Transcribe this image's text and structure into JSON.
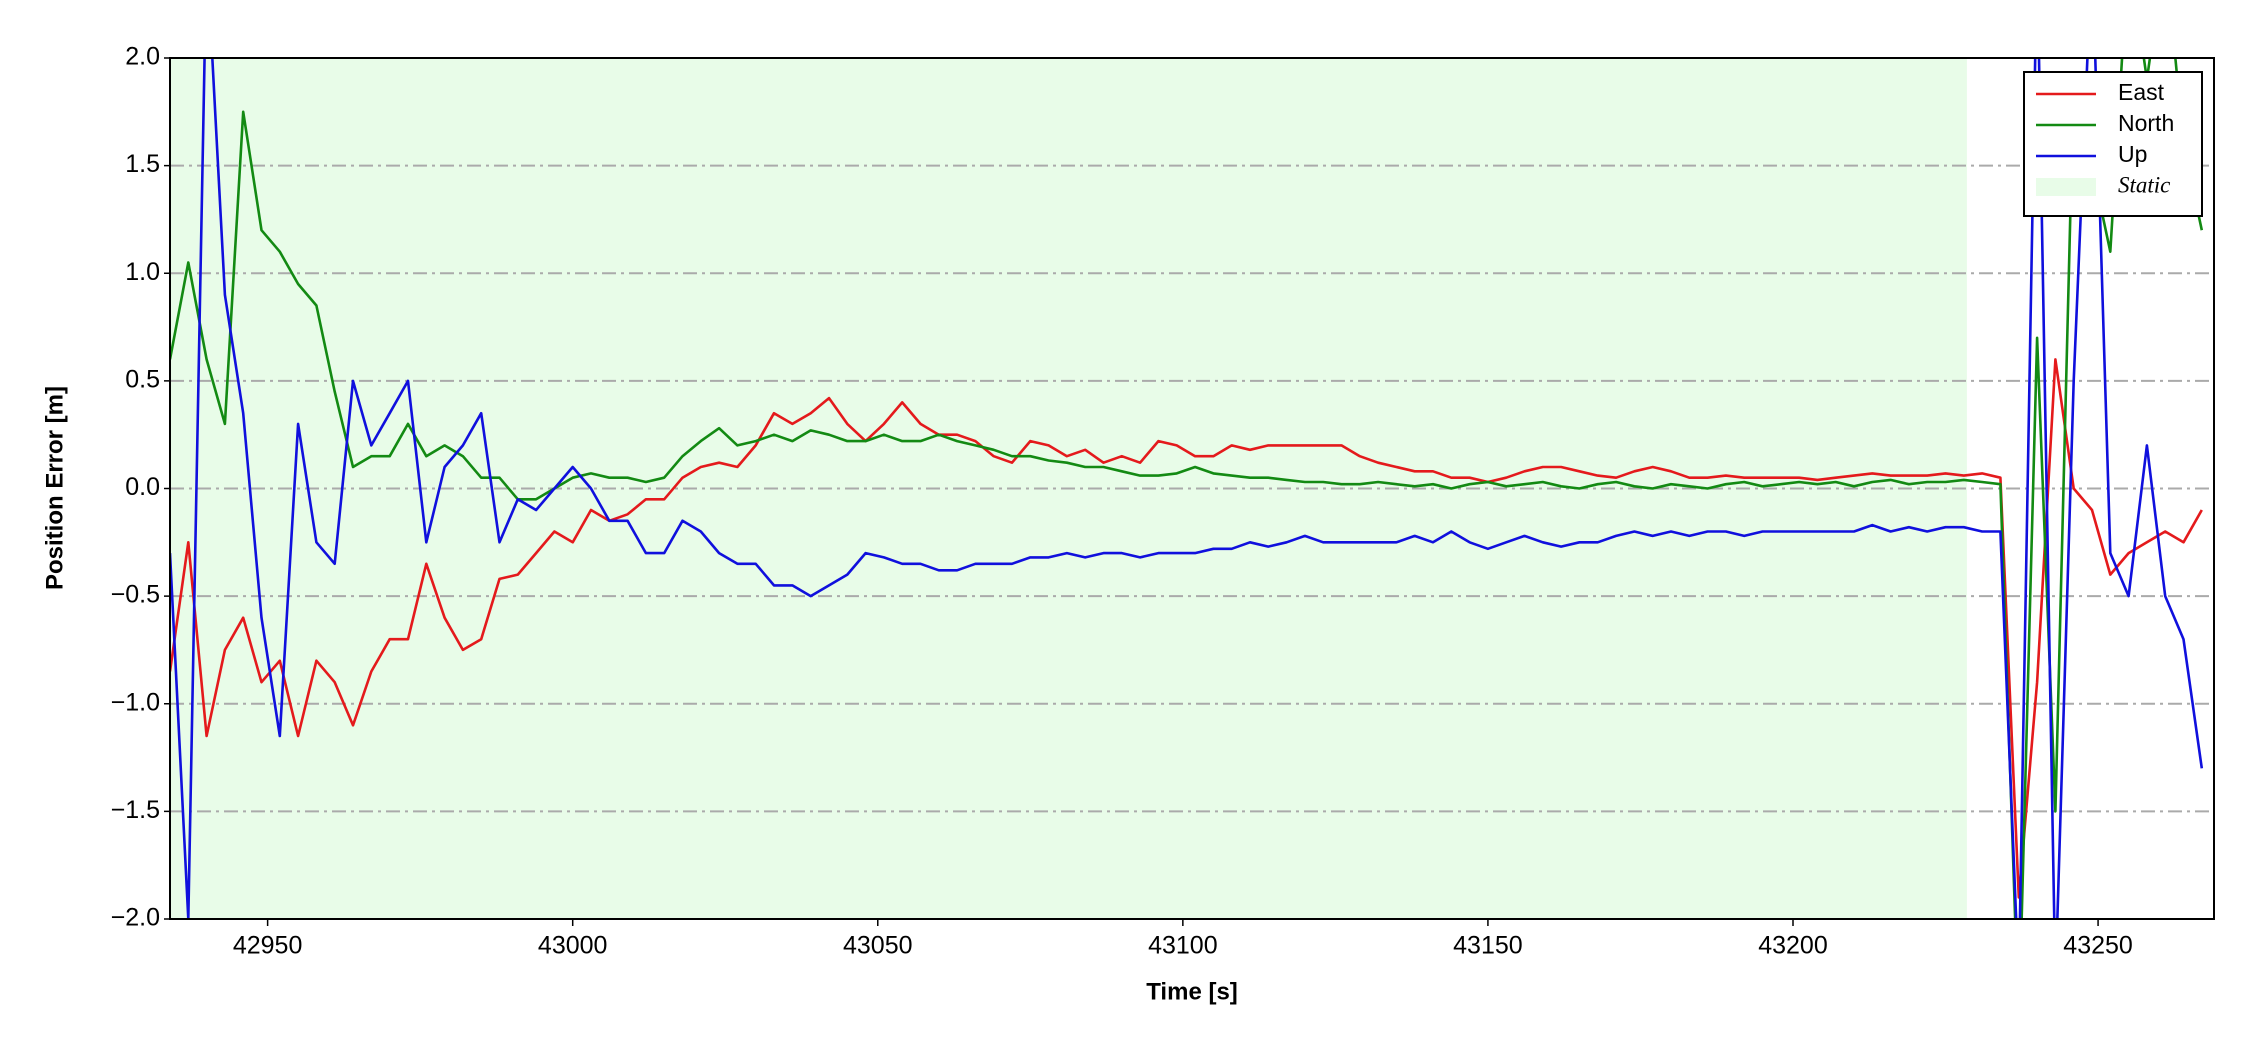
{
  "chart_data": {
    "type": "line",
    "xlabel": "Time [s]",
    "ylabel": "Position Error [m]",
    "x": [
      42934,
      42937,
      42940,
      42943,
      42946,
      42949,
      42952,
      42955,
      42958,
      42961,
      42964,
      42967,
      42970,
      42973,
      42976,
      42979,
      42982,
      42985,
      42988,
      42991,
      42994,
      42997,
      43000,
      43003,
      43006,
      43009,
      43012,
      43015,
      43018,
      43021,
      43024,
      43027,
      43030,
      43033,
      43036,
      43039,
      43042,
      43045,
      43048,
      43051,
      43054,
      43057,
      43060,
      43063,
      43066,
      43069,
      43072,
      43075,
      43078,
      43081,
      43084,
      43087,
      43090,
      43093,
      43096,
      43099,
      43102,
      43105,
      43108,
      43111,
      43114,
      43117,
      43120,
      43123,
      43126,
      43129,
      43132,
      43135,
      43138,
      43141,
      43144,
      43147,
      43150,
      43153,
      43156,
      43159,
      43162,
      43165,
      43168,
      43171,
      43174,
      43177,
      43180,
      43183,
      43186,
      43189,
      43192,
      43195,
      43198,
      43201,
      43204,
      43207,
      43210,
      43213,
      43216,
      43219,
      43222,
      43225,
      43228,
      43231,
      43234,
      43237,
      43240,
      43243,
      43246,
      43249,
      43252,
      43255,
      43258,
      43261,
      43264,
      43267
    ],
    "series": [
      {
        "name": "East",
        "color": "#e41a1c",
        "values": [
          -0.85,
          -0.25,
          -1.15,
          -0.75,
          -0.6,
          -0.9,
          -0.8,
          -1.15,
          -0.8,
          -0.9,
          -1.1,
          -0.85,
          -0.7,
          -0.7,
          -0.35,
          -0.6,
          -0.75,
          -0.7,
          -0.42,
          -0.4,
          -0.3,
          -0.2,
          -0.25,
          -0.1,
          -0.15,
          -0.12,
          -0.05,
          -0.05,
          0.05,
          0.1,
          0.12,
          0.1,
          0.2,
          0.35,
          0.3,
          0.35,
          0.42,
          0.3,
          0.22,
          0.3,
          0.4,
          0.3,
          0.25,
          0.25,
          0.22,
          0.15,
          0.12,
          0.22,
          0.2,
          0.15,
          0.18,
          0.12,
          0.15,
          0.12,
          0.22,
          0.2,
          0.15,
          0.15,
          0.2,
          0.18,
          0.2,
          0.2,
          0.2,
          0.2,
          0.2,
          0.15,
          0.12,
          0.1,
          0.08,
          0.08,
          0.05,
          0.05,
          0.03,
          0.05,
          0.08,
          0.1,
          0.1,
          0.08,
          0.06,
          0.05,
          0.08,
          0.1,
          0.08,
          0.05,
          0.05,
          0.06,
          0.05,
          0.05,
          0.05,
          0.05,
          0.04,
          0.05,
          0.06,
          0.07,
          0.06,
          0.06,
          0.06,
          0.07,
          0.06,
          0.07,
          0.05,
          -1.9,
          -0.9,
          0.6,
          0.0,
          -0.1,
          -0.4,
          -0.3,
          -0.25,
          -0.2,
          -0.25,
          -0.1
        ]
      },
      {
        "name": "North",
        "color": "#138a13",
        "values": [
          0.6,
          1.05,
          0.6,
          0.3,
          1.75,
          1.2,
          1.1,
          0.95,
          0.85,
          0.45,
          0.1,
          0.15,
          0.15,
          0.3,
          0.15,
          0.2,
          0.15,
          0.05,
          0.05,
          -0.05,
          -0.05,
          0.0,
          0.05,
          0.07,
          0.05,
          0.05,
          0.03,
          0.05,
          0.15,
          0.22,
          0.28,
          0.2,
          0.22,
          0.25,
          0.22,
          0.27,
          0.25,
          0.22,
          0.22,
          0.25,
          0.22,
          0.22,
          0.25,
          0.22,
          0.2,
          0.18,
          0.15,
          0.15,
          0.13,
          0.12,
          0.1,
          0.1,
          0.08,
          0.06,
          0.06,
          0.07,
          0.1,
          0.07,
          0.06,
          0.05,
          0.05,
          0.04,
          0.03,
          0.03,
          0.02,
          0.02,
          0.03,
          0.02,
          0.01,
          0.02,
          0.0,
          0.02,
          0.03,
          0.01,
          0.02,
          0.03,
          0.01,
          0.0,
          0.02,
          0.03,
          0.01,
          0.0,
          0.02,
          0.01,
          0.0,
          0.02,
          0.03,
          0.01,
          0.02,
          0.03,
          0.02,
          0.03,
          0.01,
          0.03,
          0.04,
          0.02,
          0.03,
          0.03,
          0.04,
          0.03,
          0.02,
          -2.5,
          0.7,
          -1.5,
          1.9,
          1.5,
          1.1,
          2.5,
          1.9,
          2.5,
          1.6,
          1.2
        ]
      },
      {
        "name": "Up",
        "color": "#1010dd",
        "values": [
          -0.3,
          -2.0,
          2.5,
          0.9,
          0.35,
          -0.6,
          -1.15,
          0.3,
          -0.25,
          -0.35,
          0.5,
          0.2,
          0.35,
          0.5,
          -0.25,
          0.1,
          0.2,
          0.35,
          -0.25,
          -0.05,
          -0.1,
          0.0,
          0.1,
          0.0,
          -0.15,
          -0.15,
          -0.3,
          -0.3,
          -0.15,
          -0.2,
          -0.3,
          -0.35,
          -0.35,
          -0.45,
          -0.45,
          -0.5,
          -0.45,
          -0.4,
          -0.3,
          -0.32,
          -0.35,
          -0.35,
          -0.38,
          -0.38,
          -0.35,
          -0.35,
          -0.35,
          -0.32,
          -0.32,
          -0.3,
          -0.32,
          -0.3,
          -0.3,
          -0.32,
          -0.3,
          -0.3,
          -0.3,
          -0.28,
          -0.28,
          -0.25,
          -0.27,
          -0.25,
          -0.22,
          -0.25,
          -0.25,
          -0.25,
          -0.25,
          -0.25,
          -0.22,
          -0.25,
          -0.2,
          -0.25,
          -0.28,
          -0.25,
          -0.22,
          -0.25,
          -0.27,
          -0.25,
          -0.25,
          -0.22,
          -0.2,
          -0.22,
          -0.2,
          -0.22,
          -0.2,
          -0.2,
          -0.22,
          -0.2,
          -0.2,
          -0.2,
          -0.2,
          -0.2,
          -0.2,
          -0.17,
          -0.2,
          -0.18,
          -0.2,
          -0.18,
          -0.18,
          -0.2,
          -0.2,
          -2.3,
          2.5,
          -2.3,
          0.5,
          2.5,
          -0.3,
          -0.5,
          0.2,
          -0.5,
          -0.7,
          -1.3
        ]
      }
    ],
    "span": {
      "label": "Static",
      "x": [
        42934,
        43228.5
      ],
      "color": "#e8fce8"
    },
    "xlim": [
      42934,
      43269
    ],
    "xticks": [
      42950,
      43000,
      43050,
      43100,
      43150,
      43200,
      43250
    ],
    "ylim": [
      -2,
      2
    ],
    "yticks": [
      {
        "value": -2,
        "label": "−2.0"
      },
      {
        "value": -1.5,
        "label": "−1.5"
      },
      {
        "value": -1,
        "label": "−1.0"
      },
      {
        "value": -0.5,
        "label": "−0.5"
      },
      {
        "value": 0,
        "label": "0.0"
      },
      {
        "value": 0.5,
        "label": "0.5"
      },
      {
        "value": 1,
        "label": "1.0"
      },
      {
        "value": 1.5,
        "label": "1.5"
      },
      {
        "value": 2,
        "label": "2.0"
      }
    ],
    "grid": true,
    "legend": "upper right"
  }
}
